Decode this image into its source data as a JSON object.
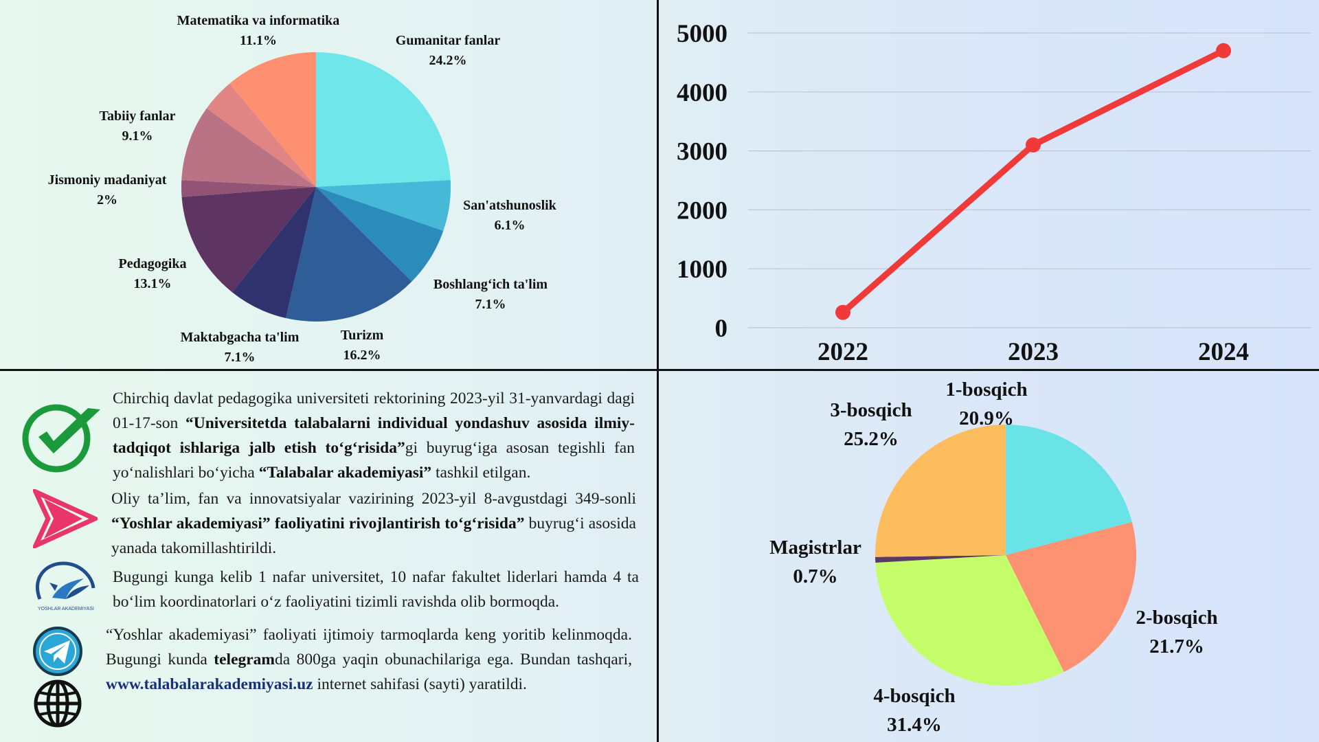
{
  "colors": {
    "line_series": "#f03a3a",
    "grid": "#bcc6d4",
    "check": "#1a9a3a",
    "arrow": "#e8356a",
    "telegram": "#2aa6d8",
    "logo": "#1f4e8c"
  },
  "chart_data": [
    {
      "type": "pie",
      "slices": [
        {
          "label": "Gumanitar fanlar",
          "value": 24.2,
          "display": "24.2%",
          "color": "#6ee6ea"
        },
        {
          "label": "San'atshunoslik",
          "value": 6.1,
          "display": "6.1%",
          "color": "#46b8d8"
        },
        {
          "label": "Boshlang‘ich ta'lim",
          "value": 7.1,
          "display": "7.1%",
          "color": "#2b8cbc"
        },
        {
          "label": "Turizm",
          "value": 16.2,
          "display": "16.2%",
          "color": "#2e5d98"
        },
        {
          "label": "Maktabgacha ta'lim",
          "value": 7.1,
          "display": "7.1%",
          "color": "#2f326c"
        },
        {
          "label": "Pedagogika",
          "value": 13.1,
          "display": "13.1%",
          "color": "#5e3562"
        },
        {
          "label": "Jismoniy madaniyat",
          "value": 2.0,
          "display": "2%",
          "color": "#935375"
        },
        {
          "label": "Tabiiy fanlar",
          "value": 9.1,
          "display": "9.1%",
          "color": "#b97384"
        },
        {
          "label": "",
          "value": 4.0,
          "display": "",
          "color": "#e08484"
        },
        {
          "label": "Matematika va informatika",
          "value": 11.1,
          "display": "11.1%",
          "color": "#fd9070"
        }
      ]
    },
    {
      "type": "line",
      "categories": [
        "2022",
        "2023",
        "2024"
      ],
      "series": [
        {
          "values": [
            260,
            3100,
            4700
          ]
        }
      ],
      "ylim": [
        0,
        5000
      ],
      "yticks": [
        "0",
        "1000",
        "2000",
        "3000",
        "4000",
        "5000"
      ],
      "grid": true
    },
    {
      "type": "pie",
      "slices": [
        {
          "label": "1-bosqich",
          "value": 20.9,
          "display": "20.9%",
          "color": "#6ae3e6"
        },
        {
          "label": "2-bosqich",
          "value": 21.7,
          "display": "21.7%",
          "color": "#fd9272"
        },
        {
          "label": "4-bosqich",
          "value": 31.4,
          "display": "31.4%",
          "color": "#c5fd6a"
        },
        {
          "label": "Magistrlar",
          "value": 0.7,
          "display": "0.7%",
          "color": "#5a3a66"
        },
        {
          "label": "3-bosqich",
          "value": 25.2,
          "display": "25.2%",
          "color": "#fdbd5e"
        }
      ]
    }
  ],
  "info": {
    "p1": {
      "t1": "Chirchiq davlat pedagogika universiteti rektorining 2023-yil 31-yanvardagi dagi 01-17-son ",
      "b1": "“Universitetda talabalarni individual yondashuv asosida ilmiy-tadqiqot ishlariga jalb etish to‘g‘risida”",
      "t2": "gi buyrug‘iga asosan  tegishli fan yo‘nalishlari bo‘yicha ",
      "b2": "“Talabalar akademiyasi”",
      "t3": " tashkil etilgan."
    },
    "p2": {
      "t1": "Oliy ta’lim, fan va innovatsiyalar vazirining 2023-yil 8-avgustdagi 349-sonli ",
      "b1": "“Yoshlar akademiyasi” faoliyatini rivojlantirish to‘g‘risida”",
      "t2": " buyrug‘i asosida yanada takomillashtirildi."
    },
    "p3": {
      "t1": "Bugungi kunga kelib 1 nafar universitet, 10 nafar fakultet liderlari hamda 4 ta bo‘lim koordinatorlari  o‘z faoliyatini tizimli ravishda olib bormoqda."
    },
    "p4": {
      "t1": "“Yoshlar akademiyasi” faoliyati ijtimoiy tarmoqlarda keng yoritib kelinmoqda. Bugungi kunda ",
      "b1": "telegram",
      "t2": "da 800ga yaqin obunachilariga ega. Bundan tashqari, ",
      "link": "www.talabalarakademiyasi.uz",
      "t3": " internet sahifasi (sayti) yaratildi."
    },
    "logo_text": "YOSHLAR AKADEMIYASI",
    "icons": [
      "check-icon",
      "play-arrow-icon",
      "yoshlar-akademiyasi-logo",
      "telegram-icon",
      "globe-icon"
    ]
  }
}
